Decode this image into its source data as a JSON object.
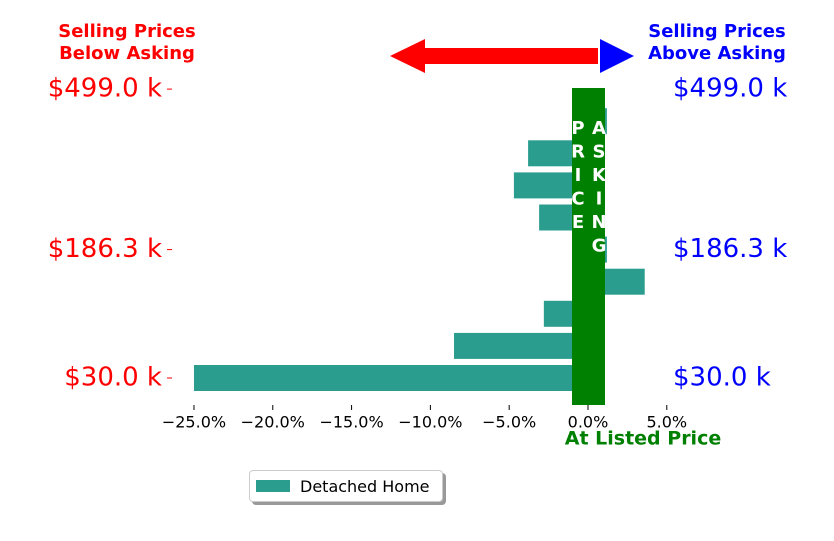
{
  "chart_data": {
    "type": "barh",
    "left_note": [
      "Selling Prices",
      "Below Asking"
    ],
    "right_note": [
      "Selling Prices",
      "Above Asking"
    ],
    "center_label": "ASKING PRICE",
    "xlabel": "At Listed Price",
    "categories": [
      "$30.0 k",
      null,
      null,
      null,
      "$186.3 k",
      null,
      null,
      null,
      null,
      "$499.0 k"
    ],
    "series": [
      {
        "name": "Detached Home",
        "color": "#2a9d8f",
        "values": [
          -25.0,
          -8.5,
          -2.8,
          3.6,
          1.2,
          -3.1,
          -4.7,
          -3.8,
          1.2,
          null
        ]
      }
    ],
    "xlim": [
      -26.8,
      6.6
    ],
    "xticks": [
      {
        "value": -25,
        "label": "−25.0%"
      },
      {
        "value": -20,
        "label": "−20.0%"
      },
      {
        "value": -15,
        "label": "−15.0%"
      },
      {
        "value": -10,
        "label": "−10.0%"
      },
      {
        "value": -5,
        "label": "−5.0%"
      },
      {
        "value": 0,
        "label": "0.0%"
      },
      {
        "value": 5,
        "label": "5.0%"
      }
    ]
  }
}
